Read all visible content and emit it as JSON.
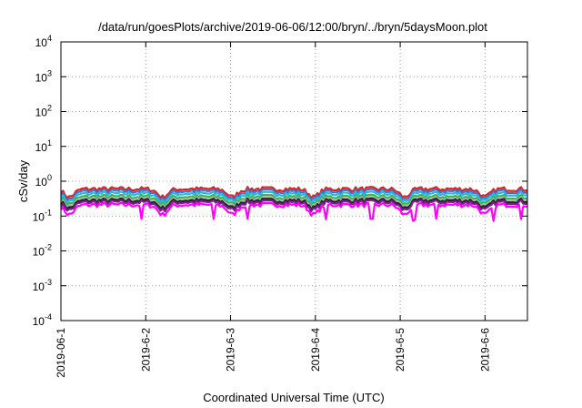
{
  "chart_data": {
    "type": "line",
    "title": "/data/run/goesPlots/archive/2019-06-06/12:00/bryn/../bryn/5daysMoon.plot",
    "xlabel": "Coordinated Universal Time (UTC)",
    "ylabel": "cSv/day",
    "yscale": "log",
    "ylim": [
      0.0001,
      10000
    ],
    "y_ticks": [
      {
        "value": 0.0001,
        "base": "10",
        "exp": "-4"
      },
      {
        "value": 0.001,
        "base": "10",
        "exp": "-3"
      },
      {
        "value": 0.01,
        "base": "10",
        "exp": "-2"
      },
      {
        "value": 0.1,
        "base": "10",
        "exp": "-1"
      },
      {
        "value": 1,
        "base": "10",
        "exp": "0"
      },
      {
        "value": 10,
        "base": "10",
        "exp": "1"
      },
      {
        "value": 100,
        "base": "10",
        "exp": "2"
      },
      {
        "value": 1000,
        "base": "10",
        "exp": "3"
      },
      {
        "value": 10000,
        "base": "10",
        "exp": "4"
      }
    ],
    "x_ticks": [
      "2019-06-1",
      "2019-6-2",
      "2019-6-3",
      "2019-6-4",
      "2019-6-5",
      "2019-6-6"
    ],
    "xlim_days": [
      0,
      5.5
    ],
    "grid": true,
    "legend": "none",
    "series": [
      {
        "color": "#e0201b",
        "level": 0.6,
        "dip": 0.35
      },
      {
        "color": "#4a6fc8",
        "level": 0.52,
        "dip": 0.3
      },
      {
        "color": "#29b8e0",
        "level": 0.44,
        "dip": 0.26
      },
      {
        "color": "#3ab54a",
        "level": 0.36,
        "dip": 0.22
      },
      {
        "color": "#b0b0b0",
        "level": 0.31,
        "dip": 0.19
      },
      {
        "color": "#222222",
        "level": 0.28,
        "dip": 0.17
      },
      {
        "color": "#7a1f8c",
        "level": 0.25,
        "dip": 0.15
      },
      {
        "color": "#ff00ff",
        "level": 0.21,
        "dip": 0.11
      }
    ]
  }
}
